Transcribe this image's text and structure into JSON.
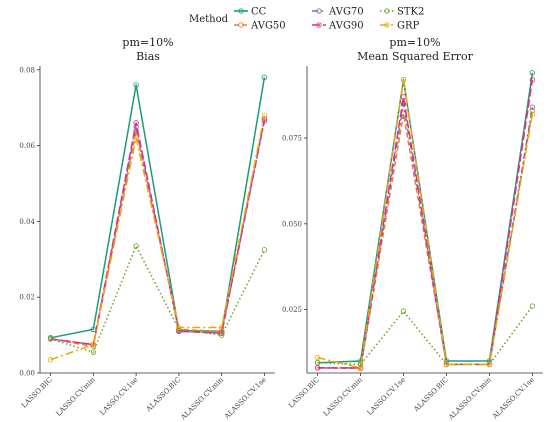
{
  "legend": {
    "title": "Method",
    "items": [
      {
        "name": "CC",
        "color": "#1b9e77",
        "dash": "",
        "marker": "circle"
      },
      {
        "name": "AVG50",
        "color": "#f07d2f",
        "dash": "5,3",
        "marker": "circle"
      },
      {
        "name": "AVG70",
        "color": "#7570b3",
        "dash": "6,3,2,3",
        "marker": "circle"
      },
      {
        "name": "AVG90",
        "color": "#e7298a",
        "dash": "8,3",
        "marker": "circle"
      },
      {
        "name": "STK2",
        "color": "#66a61e",
        "dash": "1.5,2.5",
        "marker": "circle"
      },
      {
        "name": "GRP",
        "color": "#e6ab02",
        "dash": "8,3,2,3",
        "marker": "circle"
      }
    ]
  },
  "chart_data": [
    {
      "type": "line",
      "title": "pm=10%",
      "subtitle": "Bias",
      "categories": [
        "LASSO.BIC",
        "LASSO.CV.min",
        "LASSO.CV.1se",
        "ALASSO.BIC",
        "ALASSO.CV.min",
        "ALASSO.CV.1se"
      ],
      "ylim": [
        0,
        0.081
      ],
      "yticks": [
        0.0,
        0.02,
        0.04,
        0.06,
        0.08
      ],
      "ytick_labels": [
        "0.00",
        "0.02",
        "0.04",
        "0.06",
        "0.08"
      ],
      "series": [
        {
          "name": "CC",
          "values": [
            0.0093,
            0.0115,
            0.076,
            0.0112,
            0.011,
            0.078
          ]
        },
        {
          "name": "AVG50",
          "values": [
            0.009,
            0.007,
            0.064,
            0.0115,
            0.011,
            0.067
          ]
        },
        {
          "name": "AVG70",
          "values": [
            0.009,
            0.0075,
            0.065,
            0.011,
            0.0105,
            0.0665
          ]
        },
        {
          "name": "AVG90",
          "values": [
            0.009,
            0.0075,
            0.066,
            0.011,
            0.0105,
            0.067
          ]
        },
        {
          "name": "STK2",
          "values": [
            0.009,
            0.0055,
            0.0335,
            0.0115,
            0.01,
            0.0325
          ]
        },
        {
          "name": "GRP",
          "values": [
            0.0035,
            0.0075,
            0.062,
            0.012,
            0.012,
            0.068
          ]
        }
      ]
    },
    {
      "type": "line",
      "title": "pm=10%",
      "subtitle": "Mean Squared Error",
      "categories": [
        "LASSO.BIC",
        "LASSO.CV.min",
        "LASSO.CV.1se",
        "ALASSO.BIC",
        "ALASSO.CV.min",
        "ALASSO.CV.1se"
      ],
      "ylim": [
        0.0065,
        0.096
      ],
      "yticks": [
        0.025,
        0.05,
        0.075
      ],
      "ytick_labels": [
        "0.025",
        "0.050",
        "0.075"
      ],
      "series": [
        {
          "name": "CC",
          "values": [
            0.0095,
            0.01,
            0.092,
            0.01,
            0.01,
            0.094
          ]
        },
        {
          "name": "AVG50",
          "values": [
            0.008,
            0.0078,
            0.082,
            0.009,
            0.009,
            0.083
          ]
        },
        {
          "name": "AVG70",
          "values": [
            0.008,
            0.008,
            0.085,
            0.009,
            0.009,
            0.084
          ]
        },
        {
          "name": "AVG90",
          "values": [
            0.008,
            0.008,
            0.087,
            0.009,
            0.009,
            0.092
          ]
        },
        {
          "name": "STK2",
          "values": [
            0.0095,
            0.009,
            0.0245,
            0.009,
            0.009,
            0.026
          ]
        },
        {
          "name": "GRP",
          "values": [
            0.011,
            0.008,
            0.092,
            0.009,
            0.009,
            0.082
          ]
        }
      ]
    }
  ]
}
